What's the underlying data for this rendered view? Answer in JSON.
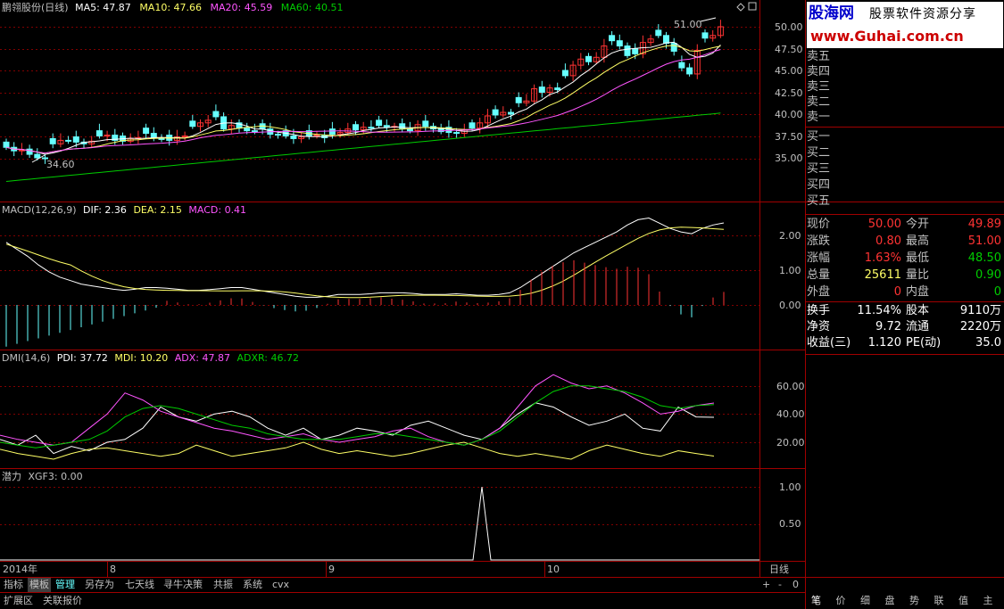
{
  "colors": {
    "red": "#ff3333",
    "green": "#00cc00",
    "cyan": "#66ffff",
    "yellow": "#ffff66",
    "magenta": "#ff55ff",
    "white": "#ffffff",
    "gridline": "#800000",
    "label": "#c0c0c0"
  },
  "header": {
    "stock": "鹏翎股份(日线)",
    "ma5": "MA5: 47.87",
    "ma10": "MA10: 47.66",
    "ma20": "MA20: 45.59",
    "ma60": "MA60: 40.51"
  },
  "price_axis": [
    "50.00",
    "47.50",
    "45.00",
    "42.50",
    "40.00",
    "37.50",
    "35.00"
  ],
  "annotations": {
    "high": "51.00",
    "low": "34.60"
  },
  "macd": {
    "title": "MACD(12,26,9)",
    "dif": "DIF: 2.36",
    "dea": "DEA: 2.15",
    "macd": "MACD: 0.41",
    "axis": [
      "2.00",
      "1.00",
      "0.00"
    ]
  },
  "dmi": {
    "title": "DMI(14,6)",
    "pdi": "PDI: 37.72",
    "mdi": "MDI: 10.20",
    "adx": "ADX: 47.87",
    "adxr": "ADXR: 46.72",
    "axis": [
      "60.00",
      "40.00",
      "20.00"
    ]
  },
  "potential": {
    "title": "潜力",
    "xgf": "XGF3: 0.00",
    "axis": [
      "1.00",
      "0.50"
    ]
  },
  "date_axis": {
    "year": "2014年",
    "months": [
      "8",
      "9",
      "10"
    ],
    "period": "日线"
  },
  "brand": {
    "name": "股海网",
    "slogan": "股票软件资源分享",
    "url": "www.Guhai.com.cn"
  },
  "orderbook": {
    "sells": [
      "卖五",
      "卖四",
      "卖三",
      "卖二",
      "卖一"
    ],
    "buys": [
      "买一",
      "买二",
      "买三",
      "买四",
      "买五"
    ]
  },
  "quotes": [
    {
      "l1": "现价",
      "v1": "50.00",
      "c1": "red",
      "l2": "今开",
      "v2": "49.89",
      "c2": "red"
    },
    {
      "l1": "涨跌",
      "v1": "0.80",
      "c1": "red",
      "l2": "最高",
      "v2": "51.00",
      "c2": "red"
    },
    {
      "l1": "涨幅",
      "v1": "1.63%",
      "c1": "red",
      "l2": "最低",
      "v2": "48.50",
      "c2": "green"
    },
    {
      "l1": "总量",
      "v1": "25611",
      "c1": "yellow",
      "l2": "量比",
      "v2": "0.90",
      "c2": "green"
    },
    {
      "l1": "外盘",
      "v1": "0",
      "c1": "red",
      "l2": "内盘",
      "v2": "0",
      "c2": "green"
    }
  ],
  "stats": [
    {
      "l1": "换手",
      "v1": "11.54%",
      "l2": "股本",
      "v2": "9110万"
    },
    {
      "l1": "净资",
      "v1": "9.72",
      "l2": "流通",
      "v2": "2220万"
    },
    {
      "l1": "收益(三)",
      "v1": "1.120",
      "l2": "PE(动)",
      "v2": "35.0"
    }
  ],
  "tabs": [
    "指标",
    "模板",
    "管理",
    "另存为",
    "七天线",
    "寻牛决策",
    "共振",
    "系统",
    "cvx"
  ],
  "bottom_tabs": [
    "扩展区",
    "关联报价"
  ],
  "zoom": {
    "plus": "+",
    "minus": "-",
    "zero": "0"
  },
  "right_tabs": [
    "笔",
    "价",
    "细",
    "盘",
    "势",
    "联",
    "值",
    "主"
  ]
}
